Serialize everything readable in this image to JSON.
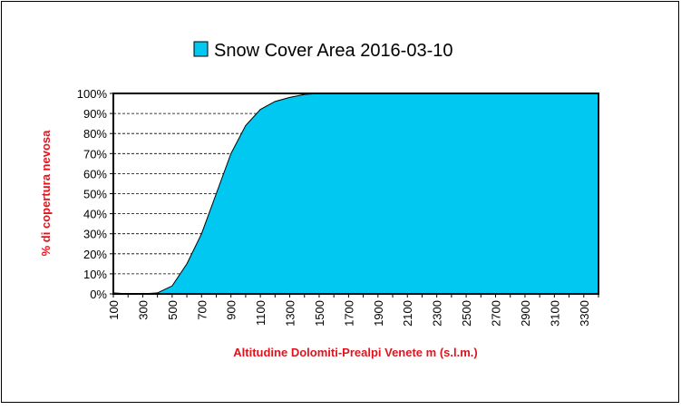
{
  "chart_data": {
    "type": "area",
    "legend": {
      "label": "Snow Cover Area 2016-03-10",
      "placement": "top",
      "swatch_color": "#00c8f0"
    },
    "title": "",
    "xlabel": "Altitudine Dolomiti-Prealpi Venete m (s.l.m.)",
    "ylabel": "% di copertura nevosa",
    "y_ticks": [
      "0%",
      "10%",
      "20%",
      "30%",
      "40%",
      "50%",
      "60%",
      "70%",
      "80%",
      "90%",
      "100%"
    ],
    "x_ticks": [
      "100",
      "300",
      "500",
      "700",
      "900",
      "1100",
      "1300",
      "1500",
      "1700",
      "1900",
      "2100",
      "2300",
      "2500",
      "2700",
      "2900",
      "3100",
      "3300"
    ],
    "xlim": [
      100,
      3400
    ],
    "ylim": [
      0,
      100
    ],
    "grid": "horizontal dashed",
    "fill_color": "#00c8f0",
    "line_color": "#000000",
    "series": [
      {
        "x": [
          100,
          200,
          300,
          400,
          500,
          600,
          700,
          800,
          900,
          1000,
          1100,
          1200,
          1300,
          1400,
          1500,
          1600,
          1700,
          1800,
          1900,
          2000,
          2100,
          2200,
          2300,
          2400,
          2500,
          2600,
          2700,
          2800,
          2900,
          3000,
          3100,
          3200,
          3300,
          3400
        ],
        "values": [
          0.5,
          0,
          0,
          0.5,
          4,
          15,
          30,
          50,
          70,
          84,
          92,
          96,
          98,
          99.5,
          100,
          100,
          100,
          100,
          100,
          100,
          100,
          100,
          100,
          100,
          100,
          100,
          100,
          100,
          100,
          100,
          100,
          100,
          100,
          100
        ]
      }
    ]
  }
}
